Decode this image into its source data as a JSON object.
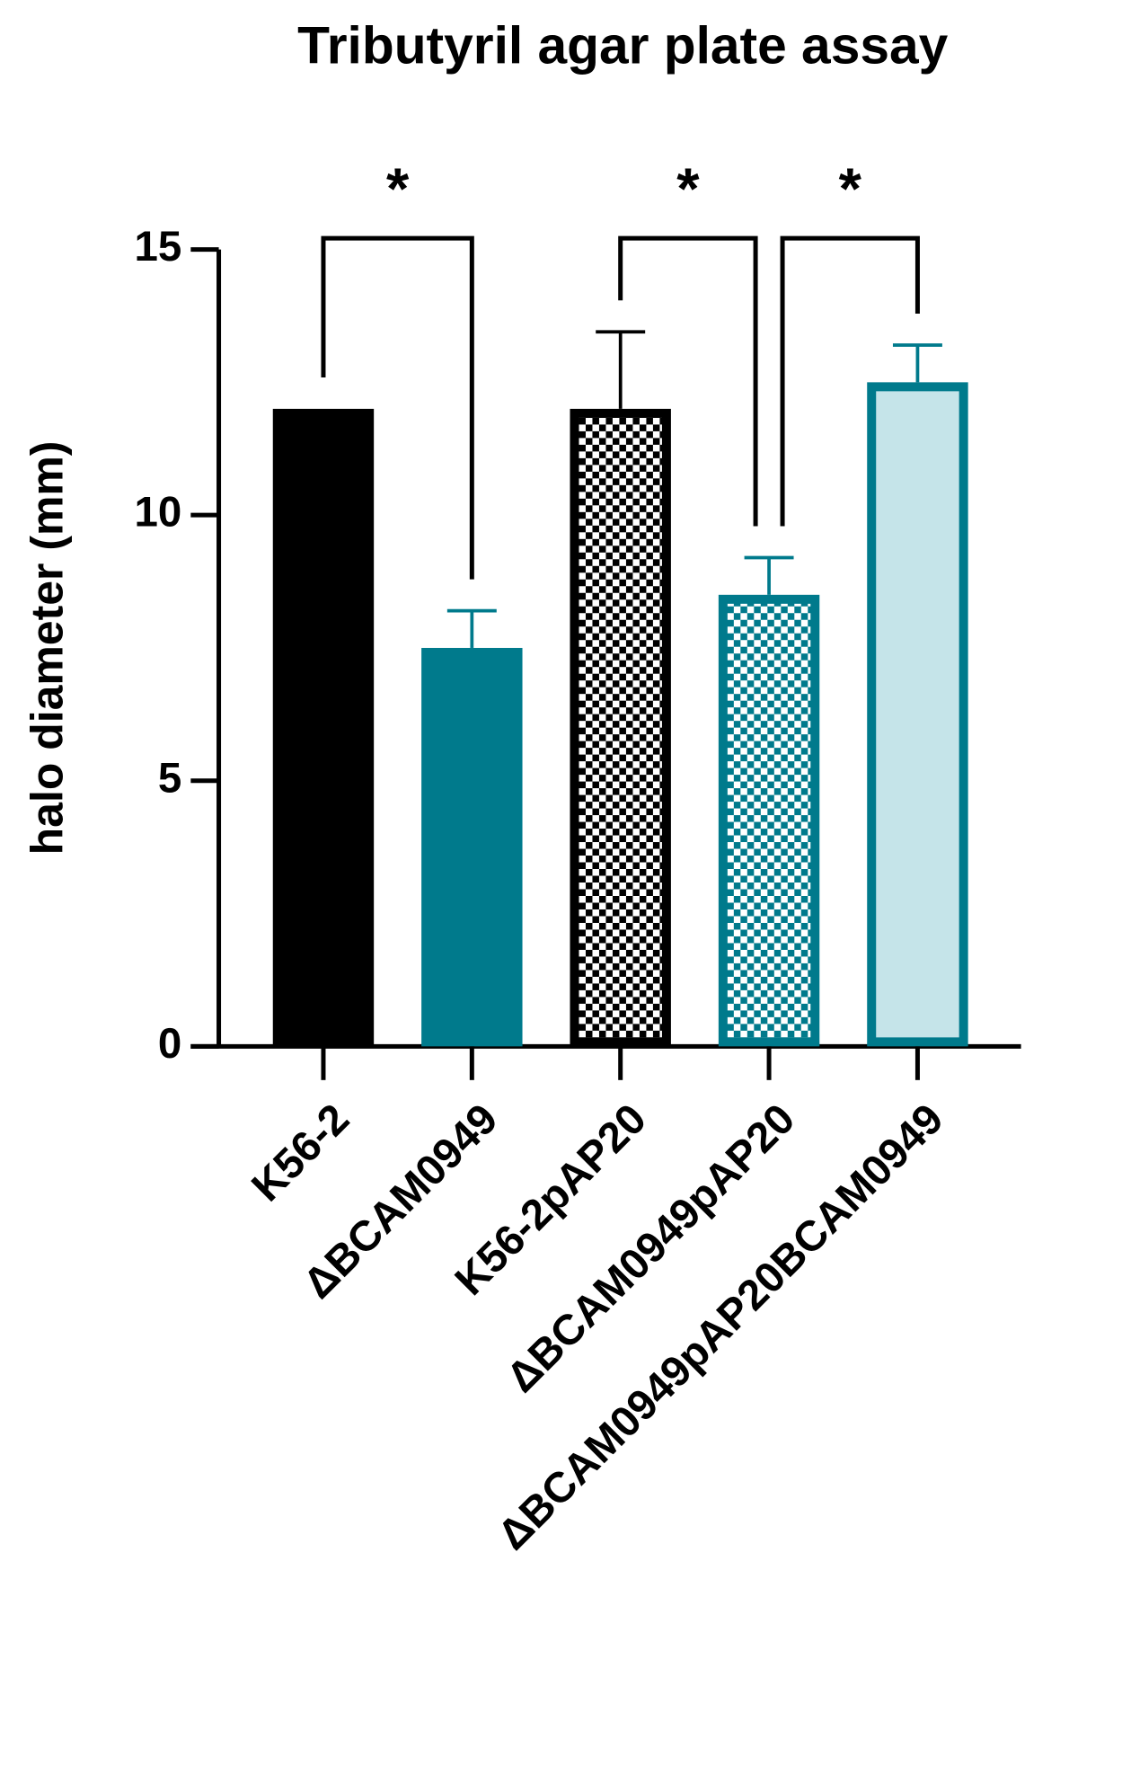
{
  "chart_data": {
    "type": "bar",
    "title": "Tributyril agar plate assay",
    "y_label": "halo diameter (mm)",
    "categories": [
      "K56-2",
      "ΔBCAM0949",
      "K56-2pAP20",
      "ΔBCAM0949pAP20",
      "ΔBCAM0949pAP20BCAM0949"
    ],
    "values": [
      12,
      7.5,
      12,
      8.5,
      12.5
    ],
    "errors": [
      0,
      0.7,
      1.45,
      0.7,
      0.7
    ],
    "colors": [
      "#000000",
      "#007a8c",
      "#000000",
      "#007a8c",
      "#007a8c"
    ],
    "fills": [
      "solid",
      "solid",
      "checker",
      "checker",
      "light"
    ],
    "light_color": "#c5e4e9",
    "ylim": [
      0,
      15
    ],
    "yticks": [
      0,
      5,
      10,
      15
    ],
    "significance": [
      {
        "from": 0,
        "to": 1,
        "label": "*"
      },
      {
        "from": 2,
        "to": 3,
        "label": "*"
      },
      {
        "from": 3,
        "to": 4,
        "label": "*"
      }
    ]
  }
}
